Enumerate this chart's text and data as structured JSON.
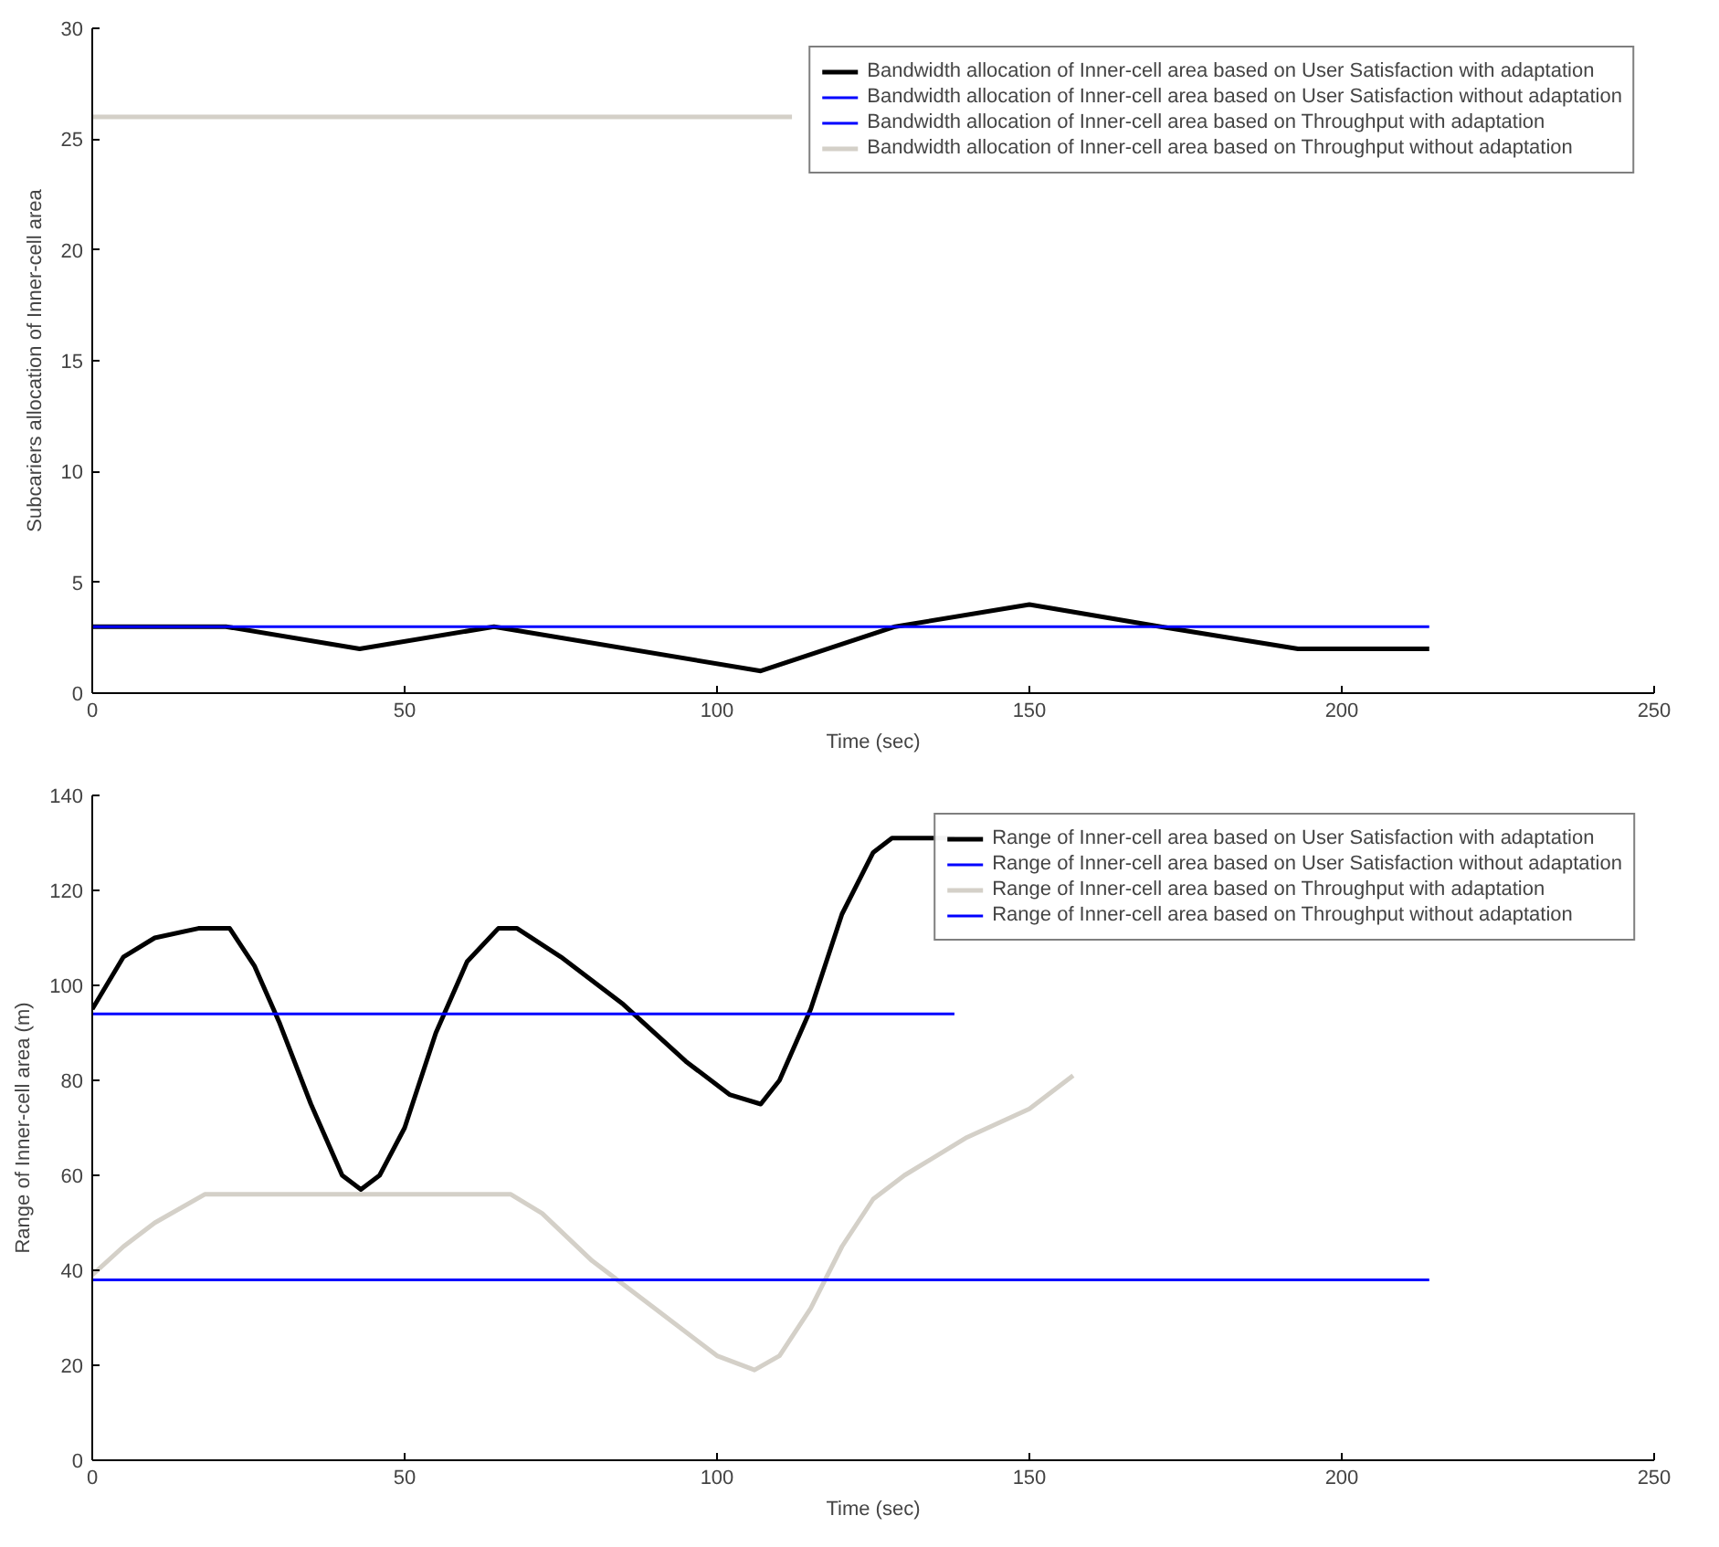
{
  "chart_data": [
    {
      "type": "line",
      "xlabel": "Time (sec)",
      "ylabel": "Subcariers allocation of Inner-cell area",
      "xlim": [
        0,
        250
      ],
      "ylim": [
        0,
        30
      ],
      "xticks": [
        0,
        50,
        100,
        150,
        200,
        250
      ],
      "yticks": [
        0,
        5,
        10,
        15,
        20,
        25,
        30
      ],
      "grid": false,
      "legend": "top right",
      "line_style": "solid",
      "marker": "none",
      "series": [
        {
          "name": "Bandwidth allocation of Inner-cell area based on User Satisfaction with adaptation",
          "color": "#000000",
          "x": [
            0,
            21.4,
            42.8,
            64.3,
            107,
            128.5,
            150,
            171,
            193,
            214
          ],
          "values": [
            3,
            3,
            2,
            3,
            1,
            3,
            4,
            3,
            2,
            2
          ]
        },
        {
          "name": "Bandwidth allocation of Inner-cell area based on User Satisfaction without adaptation",
          "color": "#0000ff",
          "x": [
            0,
            214
          ],
          "values": [
            3,
            3
          ]
        },
        {
          "name": "Bandwidth allocation of Inner-cell area based on Throughput with adaptation",
          "color": "#0000ff"
        },
        {
          "name": "Bandwidth allocation of Inner-cell area based on Throughput without adaptation",
          "color": "#d4d0c8",
          "x": [
            0,
            112
          ],
          "values": [
            26,
            26
          ]
        }
      ]
    },
    {
      "type": "line",
      "xlabel": "Time (sec)",
      "ylabel": "Range of Inner-cell area (m)",
      "xlim": [
        0,
        250
      ],
      "ylim": [
        0,
        140
      ],
      "xticks": [
        0,
        50,
        100,
        150,
        200,
        250
      ],
      "yticks": [
        0,
        20,
        40,
        60,
        80,
        100,
        120,
        140
      ],
      "grid": false,
      "legend": "top right",
      "line_style": "solid",
      "marker": "none",
      "series": [
        {
          "name": "Range of Inner-cell area based on User Satisfaction with adaptation",
          "color": "#000000",
          "x": [
            0,
            5,
            10,
            17,
            22,
            26,
            30,
            35,
            40,
            43,
            46,
            50,
            55,
            60,
            65,
            68,
            75,
            85,
            95,
            102,
            107,
            110,
            115,
            120,
            125,
            128,
            138
          ],
          "values": [
            95,
            106,
            110,
            112,
            112,
            104,
            92,
            75,
            60,
            57,
            60,
            70,
            90,
            105,
            112,
            112,
            106,
            96,
            84,
            77,
            75,
            80,
            95,
            115,
            128,
            131,
            131
          ]
        },
        {
          "name": "Range of Inner-cell area based on User Satisfaction without adaptation",
          "color": "#0000ff",
          "x": [
            0,
            138
          ],
          "values": [
            94,
            94
          ]
        },
        {
          "name": "Range of Inner-cell area based on Throughput with adaptation",
          "color": "#d4d0c8",
          "x": [
            0,
            5,
            10,
            18,
            67,
            72,
            80,
            90,
            100,
            106,
            110,
            115,
            120,
            125,
            130,
            140,
            150,
            157
          ],
          "values": [
            39,
            45,
            50,
            56,
            56,
            52,
            42,
            32,
            22,
            19,
            22,
            32,
            45,
            55,
            60,
            68,
            74,
            81
          ]
        },
        {
          "name": "Range of Inner-cell area based on Throughput without adaptation",
          "color": "#0000ff",
          "x": [
            0,
            214
          ],
          "values": [
            38,
            38
          ]
        }
      ]
    }
  ]
}
